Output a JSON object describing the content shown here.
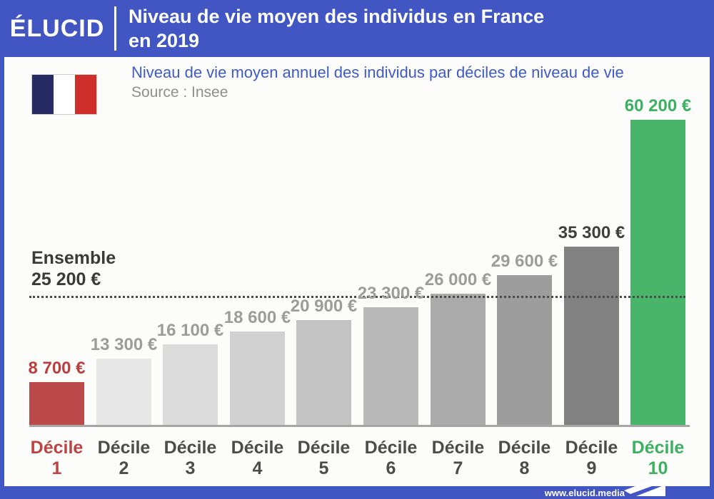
{
  "header": {
    "logo": "ÉLUCID",
    "title_line1": "Niveau de vie moyen des individus en France",
    "title_line2": "en 2019"
  },
  "subtitle": "Niveau de vie moyen annuel des individus par déciles de niveau de vie",
  "source": "Source : Insee",
  "reference": {
    "label": "Ensemble",
    "value_label": "25 200 €"
  },
  "footer": {
    "url": "www.elucid.media",
    "logo_icon": "elucid-arrow-flag-icon"
  },
  "flag_icon": "france-flag-icon",
  "colors": {
    "header_blue": "#4156C2",
    "subtitle_blue": "#3E5BC8",
    "source_gray": "#8F8F8F",
    "ensemble_dark": "#3A3A3A",
    "dotted_line": "#4A4A4A",
    "baseline_gray": "#A6A6A6",
    "background": "#FCFCFA",
    "flag_navy": "#262C63",
    "flag_red": "#CE2F2A",
    "accent_red": "#BD4747",
    "accent_green": "#48B56A"
  },
  "chart_data": {
    "type": "bar",
    "title": "Niveau de vie moyen des individus en France en 2019",
    "subtitle": "Niveau de vie moyen annuel des individus par déciles de niveau de vie",
    "source": "Source : Insee",
    "unit": "€",
    "categories": [
      "Décile 1",
      "Décile 2",
      "Décile 3",
      "Décile 4",
      "Décile 5",
      "Décile 6",
      "Décile 7",
      "Décile 8",
      "Décile 9",
      "Décile 10"
    ],
    "values": [
      8700,
      13300,
      16100,
      18600,
      20900,
      23300,
      26000,
      29600,
      35300,
      60200
    ],
    "value_labels": [
      "8 700 €",
      "13 300 €",
      "16 100 €",
      "18 600 €",
      "20 900 €",
      "23 300 €",
      "26 000 €",
      "29 600 €",
      "35 300 €",
      "60 200 €"
    ],
    "tick_line1": [
      "Décile",
      "Décile",
      "Décile",
      "Décile",
      "Décile",
      "Décile",
      "Décile",
      "Décile",
      "Décile",
      "Décile"
    ],
    "tick_line2": [
      "1",
      "2",
      "3",
      "4",
      "5",
      "6",
      "7",
      "8",
      "9",
      "10"
    ],
    "bar_colors": [
      "#BD4A4A",
      "#E7E7E7",
      "#DCDCDC",
      "#D1D1D1",
      "#C3C3C3",
      "#B9B9B9",
      "#ABABAB",
      "#9D9D9D",
      "#818181",
      "#48B56A"
    ],
    "value_label_colors": [
      "#BC3F3F",
      "#9C9C9C",
      "#9C9C9C",
      "#9C9C9C",
      "#9C9C9C",
      "#9C9C9C",
      "#9C9C9C",
      "#9C9C9C",
      "#3F3F3F",
      "#3CB162"
    ],
    "tick_colors": [
      "#BC4341",
      "#4C4C4C",
      "#4C4C4C",
      "#4C4C4C",
      "#4C4C4C",
      "#4C4C4C",
      "#4C4C4C",
      "#4C4C4C",
      "#4C4C4C",
      "#3CB162"
    ],
    "reference_line": {
      "label": "Ensemble",
      "value": 25200,
      "value_label": "25 200 €",
      "style": "dotted"
    },
    "ylim": [
      0,
      62000
    ],
    "grid": false,
    "legend": false
  }
}
